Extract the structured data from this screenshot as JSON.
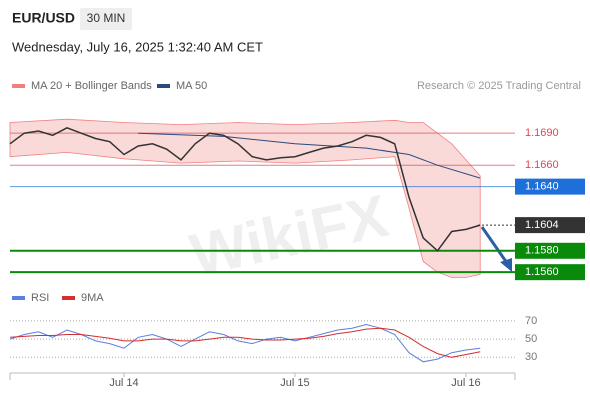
{
  "header": {
    "symbol": "EUR/USD",
    "timeframe": "30 MIN",
    "date": "Wednesday, July 16, 2025 1:32:40 AM CET"
  },
  "credit": "Research © 2025 Trading Central",
  "watermark": "WikiFX",
  "chart_data": [
    {
      "type": "line",
      "x": [
        0,
        1,
        2,
        3,
        4,
        5,
        6,
        7,
        8,
        9,
        10,
        11,
        12,
        13,
        14,
        15,
        16,
        17,
        18,
        19,
        20,
        21,
        22,
        23,
        24,
        25,
        26,
        27,
        28,
        29,
        30,
        31,
        32,
        33
      ],
      "values": [
        1.168,
        1.169,
        1.1692,
        1.1688,
        1.1695,
        1.169,
        1.1685,
        1.1682,
        1.167,
        1.1678,
        1.168,
        1.1675,
        1.1665,
        1.168,
        1.169,
        1.1688,
        1.168,
        1.1668,
        1.1665,
        1.1667,
        1.1668,
        1.1672,
        1.1676,
        1.1678,
        1.1682,
        1.1688,
        1.1686,
        1.168,
        1.163,
        1.1592,
        1.158,
        1.1598,
        1.16,
        1.1604
      ],
      "color": "#333333",
      "ma": {
        "name": "MA 50",
        "color": "#2b4a7e",
        "x": [
          9,
          15,
          20,
          25,
          28,
          30,
          33
        ],
        "values": [
          1.169,
          1.1687,
          1.168,
          1.1676,
          1.167,
          1.166,
          1.1648
        ]
      },
      "bands": {
        "name": "MA 20 + Bollinger Bands",
        "color": "#f08080",
        "x": [
          0,
          4,
          8,
          12,
          16,
          20,
          24,
          27,
          28,
          29,
          30,
          31,
          32,
          33
        ],
        "upper": [
          1.17,
          1.1703,
          1.17,
          1.1698,
          1.17,
          1.1698,
          1.17,
          1.1702,
          1.17,
          1.17,
          1.169,
          1.168,
          1.1665,
          1.165
        ],
        "lower": [
          1.1668,
          1.1672,
          1.1666,
          1.1662,
          1.1664,
          1.1662,
          1.1665,
          1.1668,
          1.162,
          1.157,
          1.156,
          1.1555,
          1.1555,
          1.1558
        ]
      },
      "levels": [
        {
          "value": 1.169,
          "label": "1.1690",
          "color": "#e0474c",
          "box": false
        },
        {
          "value": 1.166,
          "label": "1.1660",
          "color": "#e0474c",
          "box": false
        },
        {
          "value": 1.164,
          "label": "1.1640",
          "color": "#1e6fd9",
          "box": true
        },
        {
          "value": 1.1604,
          "label": "1.1604",
          "color": "#333333",
          "box": true
        },
        {
          "value": 1.158,
          "label": "1.1580",
          "color": "#0a8a0a",
          "box": true
        },
        {
          "value": 1.156,
          "label": "1.1560",
          "color": "#0a8a0a",
          "box": true
        }
      ],
      "ylim": [
        1.1548,
        1.1721
      ],
      "xlim": [
        0,
        35.44
      ]
    },
    {
      "type": "line",
      "x": [
        0,
        1,
        2,
        3,
        4,
        5,
        6,
        7,
        8,
        9,
        10,
        11,
        12,
        13,
        14,
        15,
        16,
        17,
        18,
        19,
        20,
        21,
        22,
        23,
        24,
        25,
        26,
        27,
        28,
        29,
        30,
        31,
        32,
        33
      ],
      "series": [
        {
          "name": "RSI",
          "color": "#5b7fde",
          "values": [
            50,
            55,
            58,
            52,
            60,
            55,
            48,
            45,
            40,
            52,
            55,
            50,
            42,
            50,
            58,
            55,
            48,
            45,
            50,
            52,
            48,
            52,
            56,
            60,
            62,
            66,
            62,
            55,
            35,
            25,
            28,
            35,
            38,
            40
          ]
        },
        {
          "name": "9MA",
          "color": "#d32f2f",
          "values": [
            52,
            53,
            54,
            54,
            55,
            55,
            53,
            51,
            48,
            48,
            50,
            50,
            48,
            48,
            50,
            52,
            52,
            50,
            49,
            49,
            50,
            51,
            53,
            56,
            58,
            61,
            62,
            60,
            52,
            42,
            34,
            30,
            33,
            36
          ]
        }
      ],
      "ylim": [
        16,
        93
      ],
      "yticks": [
        30,
        50,
        70
      ],
      "xlim": [
        0,
        35.44
      ],
      "xticks": [
        {
          "value": 8,
          "label": "Jul 14"
        },
        {
          "value": 20,
          "label": "Jul 15"
        },
        {
          "value": 32,
          "label": "Jul 16"
        }
      ]
    }
  ]
}
